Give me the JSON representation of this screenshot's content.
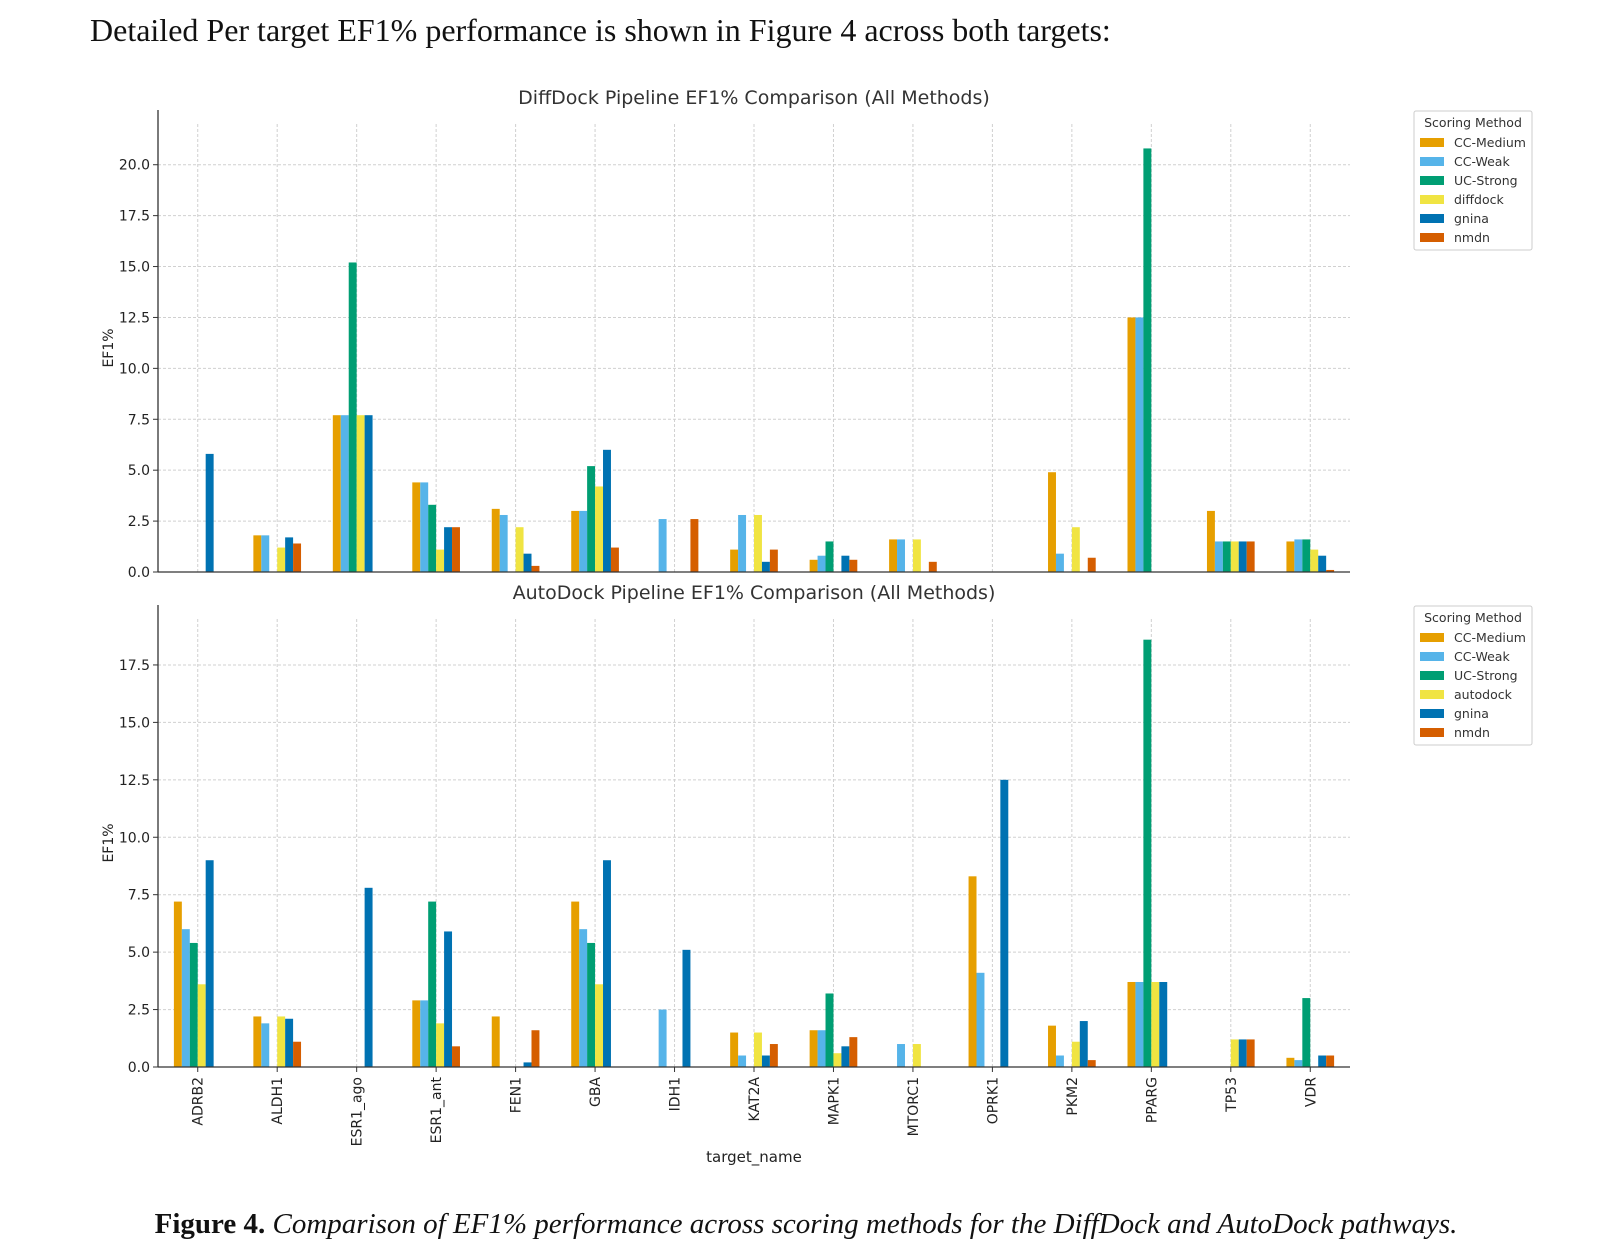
{
  "intro_text": "Detailed Per target EF1% performance is shown in Figure 4 across both targets:",
  "caption": {
    "label": "Figure 4.",
    "text": "Comparison of EF1% performance across scoring methods for the DiffDock and AutoDock pathways."
  },
  "colors": {
    "CC-Medium": "#E69F00",
    "CC-Weak": "#56B4E9",
    "UC-Strong": "#009E73",
    "diffdock": "#F0E442",
    "autodock": "#F0E442",
    "gnina": "#0072B2",
    "nmdn": "#D55E00"
  },
  "chart_data": [
    {
      "type": "bar",
      "title": "DiffDock Pipeline EF1% Comparison (All Methods)",
      "ylabel": "EF1%",
      "xlabel": "",
      "ylim": [
        0,
        22
      ],
      "yticks": [
        "0.0",
        "2.5",
        "5.0",
        "7.5",
        "10.0",
        "12.5",
        "15.0",
        "17.5",
        "20.0"
      ],
      "grid": true,
      "legend": {
        "title": "Scoring Method",
        "placement": "right"
      },
      "categories": [
        "ADRB2",
        "ALDH1",
        "ESR1_ago",
        "ESR1_ant",
        "FEN1",
        "GBA",
        "IDH1",
        "KAT2A",
        "MAPK1",
        "MTORC1",
        "OPRK1",
        "PKM2",
        "PPARG",
        "TP53",
        "VDR"
      ],
      "series": [
        {
          "name": "CC-Medium",
          "values": [
            0,
            1.8,
            7.7,
            4.4,
            3.1,
            3.0,
            0,
            1.1,
            0.6,
            1.6,
            0,
            4.9,
            12.5,
            3.0,
            1.5
          ]
        },
        {
          "name": "CC-Weak",
          "values": [
            0,
            1.8,
            7.7,
            4.4,
            2.8,
            3.0,
            2.6,
            2.8,
            0.8,
            1.6,
            0,
            0.9,
            12.5,
            1.5,
            1.6
          ]
        },
        {
          "name": "UC-Strong",
          "values": [
            0,
            0,
            15.2,
            3.3,
            0,
            5.2,
            0,
            0,
            1.5,
            0,
            0,
            0,
            20.8,
            1.5,
            1.6
          ]
        },
        {
          "name": "diffdock",
          "values": [
            0,
            1.2,
            7.7,
            1.1,
            2.2,
            4.2,
            0,
            2.8,
            0,
            1.6,
            0,
            2.2,
            0,
            1.5,
            1.1
          ]
        },
        {
          "name": "gnina",
          "values": [
            5.8,
            1.7,
            7.7,
            2.2,
            0.9,
            6.0,
            0,
            0.5,
            0.8,
            0,
            0,
            0,
            0,
            1.5,
            0.8
          ]
        },
        {
          "name": "nmdn",
          "values": [
            0,
            1.4,
            0,
            2.2,
            0.3,
            1.2,
            2.6,
            1.1,
            0.6,
            0.5,
            0,
            0.7,
            0,
            1.5,
            0.1
          ]
        }
      ]
    },
    {
      "type": "bar",
      "title": "AutoDock Pipeline EF1% Comparison (All Methods)",
      "ylabel": "EF1%",
      "xlabel": "target_name",
      "ylim": [
        0,
        19.5
      ],
      "yticks": [
        "0.0",
        "2.5",
        "5.0",
        "7.5",
        "10.0",
        "12.5",
        "15.0",
        "17.5"
      ],
      "grid": true,
      "legend": {
        "title": "Scoring Method",
        "placement": "right"
      },
      "categories": [
        "ADRB2",
        "ALDH1",
        "ESR1_ago",
        "ESR1_ant",
        "FEN1",
        "GBA",
        "IDH1",
        "KAT2A",
        "MAPK1",
        "MTORC1",
        "OPRK1",
        "PKM2",
        "PPARG",
        "TP53",
        "VDR"
      ],
      "series": [
        {
          "name": "CC-Medium",
          "values": [
            7.2,
            2.2,
            0,
            2.9,
            2.2,
            7.2,
            0,
            1.5,
            1.6,
            0,
            8.3,
            1.8,
            3.7,
            0,
            0.4
          ]
        },
        {
          "name": "CC-Weak",
          "values": [
            6.0,
            1.9,
            0,
            2.9,
            0,
            6.0,
            2.5,
            0.5,
            1.6,
            1.0,
            4.1,
            0.5,
            3.7,
            0,
            0.3
          ]
        },
        {
          "name": "UC-Strong",
          "values": [
            5.4,
            0,
            0,
            7.2,
            0,
            5.4,
            0,
            0,
            3.2,
            0,
            0,
            0,
            18.6,
            0,
            3.0
          ]
        },
        {
          "name": "autodock",
          "values": [
            3.6,
            2.2,
            0,
            1.9,
            0,
            3.6,
            0,
            1.5,
            0.6,
            1.0,
            0,
            1.1,
            3.7,
            1.2,
            0
          ]
        },
        {
          "name": "gnina",
          "values": [
            9.0,
            2.1,
            7.8,
            5.9,
            0.2,
            9.0,
            5.1,
            0.5,
            0.9,
            0,
            12.5,
            2.0,
            3.7,
            1.2,
            0.5
          ]
        },
        {
          "name": "nmdn",
          "values": [
            0,
            1.1,
            0,
            0.9,
            1.6,
            0,
            0,
            1.0,
            1.3,
            0,
            0,
            0.3,
            0,
            1.2,
            0.5
          ]
        }
      ]
    }
  ]
}
